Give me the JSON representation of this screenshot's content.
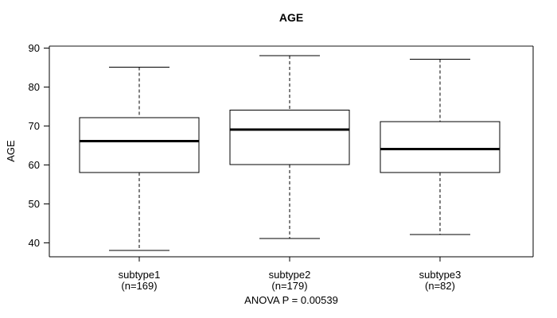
{
  "title": "AGE",
  "colors": {
    "line": "#000000",
    "frame_top": "#8a8a8a",
    "background": "#ffffff"
  },
  "chart_data": {
    "type": "boxplot",
    "title": "AGE",
    "ylabel": "AGE",
    "xlabel": "",
    "ylim": [
      36,
      91
    ],
    "yticks": [
      40,
      50,
      60,
      70,
      80,
      90
    ],
    "grid": false,
    "legend": "none",
    "categories": [
      "subtype1",
      "subtype2",
      "subtype3"
    ],
    "category_sublabels": [
      "(n=169)",
      "(n=179)",
      "(n=82)"
    ],
    "series": [
      {
        "name": "subtype1",
        "n": 169,
        "whisker_low": 38,
        "q1": 58,
        "median": 66,
        "q3": 72,
        "whisker_high": 85
      },
      {
        "name": "subtype2",
        "n": 179,
        "whisker_low": 41,
        "q1": 60,
        "median": 69,
        "q3": 74,
        "whisker_high": 88
      },
      {
        "name": "subtype3",
        "n": 82,
        "whisker_low": 42,
        "q1": 58,
        "median": 64,
        "q3": 71,
        "whisker_high": 87
      }
    ],
    "annotation": "ANOVA P = 0.00539"
  }
}
